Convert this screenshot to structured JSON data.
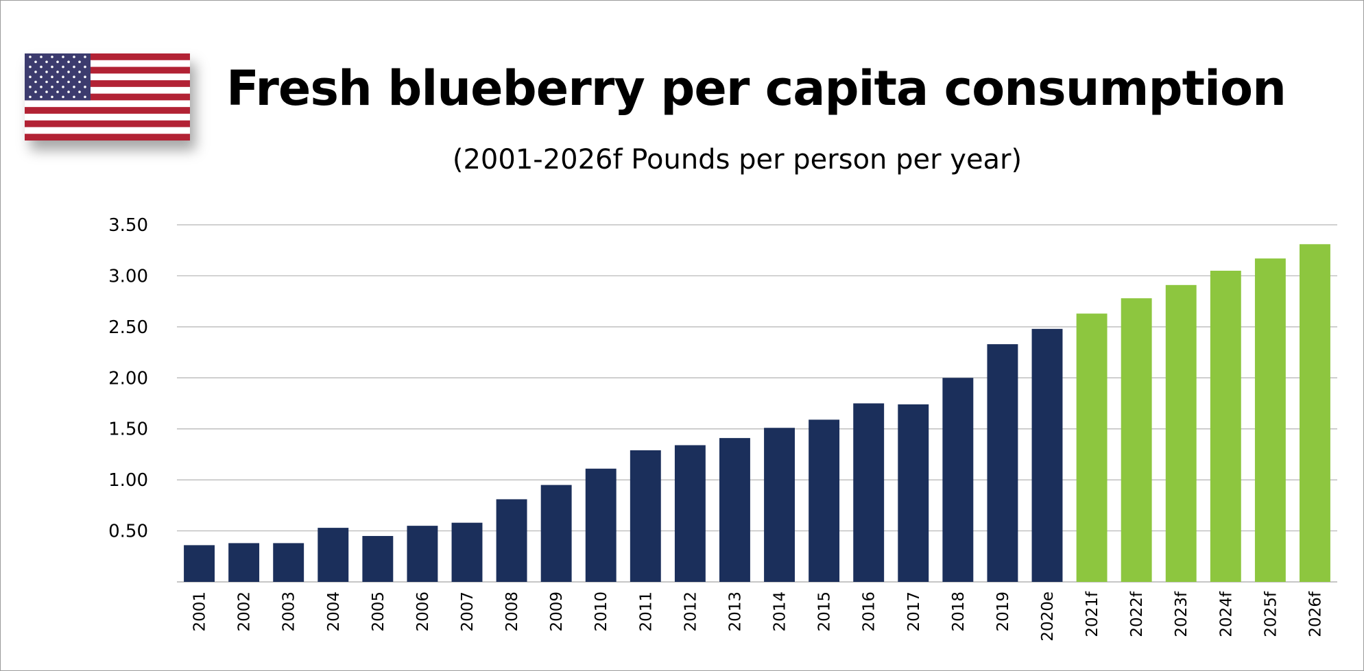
{
  "colors": {
    "historical": "#1b2f5b",
    "forecast": "#8dc63f",
    "gridline": "#b3b3b3",
    "flag_red": "#b22234",
    "flag_blue": "#3c3b6e",
    "flag_white": "#ffffff"
  },
  "header": {
    "flag_icon": "us-flag-icon",
    "title": "Fresh blueberry per capita consumption",
    "subtitle": "(2001-2026f Pounds per person per year)"
  },
  "chart_data": {
    "type": "bar",
    "title": "Fresh blueberry per capita consumption",
    "subtitle": "(2001-2026f Pounds per person per year)",
    "xlabel": "",
    "ylabel": "",
    "ylim": [
      0,
      3.5
    ],
    "yticks": [
      "0.50",
      "1.00",
      "1.50",
      "2.00",
      "2.50",
      "3.00",
      "3.50"
    ],
    "ytick_values": [
      0.5,
      1.0,
      1.5,
      2.0,
      2.5,
      3.0,
      3.5
    ],
    "grid": true,
    "legend": "none",
    "categories": [
      "2001",
      "2002",
      "2003",
      "2004",
      "2005",
      "2006",
      "2007",
      "2008",
      "2009",
      "2010",
      "2011",
      "2012",
      "2013",
      "2014",
      "2015",
      "2016",
      "2017",
      "2018",
      "2019",
      "2020e",
      "2021f",
      "2022f",
      "2023f",
      "2024f",
      "2025f",
      "2026f"
    ],
    "values": [
      0.36,
      0.38,
      0.38,
      0.53,
      0.45,
      0.55,
      0.58,
      0.81,
      0.95,
      1.11,
      1.29,
      1.34,
      1.41,
      1.51,
      1.59,
      1.75,
      1.74,
      2.0,
      2.33,
      2.48,
      2.63,
      2.78,
      2.91,
      3.05,
      3.17,
      3.31
    ],
    "series_kind": [
      "historical",
      "historical",
      "historical",
      "historical",
      "historical",
      "historical",
      "historical",
      "historical",
      "historical",
      "historical",
      "historical",
      "historical",
      "historical",
      "historical",
      "historical",
      "historical",
      "historical",
      "historical",
      "historical",
      "historical",
      "forecast",
      "forecast",
      "forecast",
      "forecast",
      "forecast",
      "forecast"
    ]
  }
}
